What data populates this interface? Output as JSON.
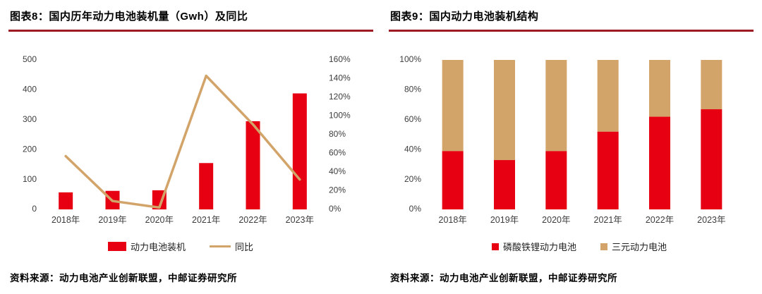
{
  "colors": {
    "red": "#e60012",
    "tan": "#d2a469",
    "rule": "#9e1b23"
  },
  "left_panel": {
    "title": "图表8：国内历年动力电池装机量（Gwh）及同比",
    "source": "资料来源：动力电池产业创新联盟，中邮证券研究所"
  },
  "right_panel": {
    "title": "图表9：国内动力电池装机结构",
    "source": "资料来源：动力电池产业创新联盟，中邮证券研究所"
  },
  "chart_data": [
    {
      "type": "bar",
      "subtype": "combo-bar-line-dual-axis",
      "title": "国内历年动力电池装机量（Gwh）及同比",
      "categories": [
        "2018年",
        "2019年",
        "2020年",
        "2021年",
        "2022年",
        "2023年"
      ],
      "series": [
        {
          "name": "动力电池装机",
          "type": "bar",
          "axis": "left",
          "color": "#e60012",
          "values": [
            57,
            62,
            64,
            155,
            295,
            388
          ]
        },
        {
          "name": "同比",
          "type": "line",
          "axis": "right",
          "color": "#d2a469",
          "values_pct": [
            57,
            9,
            2,
            143,
            91,
            32
          ]
        }
      ],
      "left_axis": {
        "min": 0,
        "max": 500,
        "step": 100
      },
      "right_axis": {
        "min": 0,
        "max": 160,
        "step": 20,
        "suffix": "%"
      },
      "grid": false,
      "legend_position": "bottom"
    },
    {
      "type": "bar",
      "subtype": "stacked-100pct",
      "title": "国内动力电池装机结构",
      "categories": [
        "2018年",
        "2019年",
        "2020年",
        "2021年",
        "2022年",
        "2023年"
      ],
      "series": [
        {
          "name": "磷酸铁锂动力电池",
          "color": "#e60012",
          "values_pct": [
            39,
            33,
            39,
            52,
            62,
            67
          ]
        },
        {
          "name": "三元动力电池",
          "color": "#d2a469",
          "values_pct": [
            61,
            67,
            61,
            48,
            38,
            33
          ]
        }
      ],
      "y_axis": {
        "min": 0,
        "max": 100,
        "step": 20,
        "suffix": "%"
      },
      "grid": false,
      "legend_position": "bottom"
    }
  ]
}
